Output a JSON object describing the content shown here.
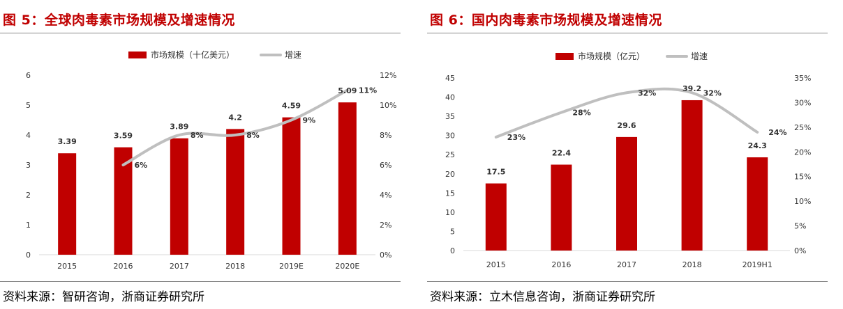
{
  "figures": [
    {
      "title": "图 5：全球肉毒素市场规模及增速情况",
      "source": "资料来源：智研咨询，浙商证券研究所",
      "legend": {
        "bar": "市场规模（十亿美元）",
        "line": "增速"
      },
      "chart_data": {
        "type": "bar",
        "categories": [
          "2015",
          "2016",
          "2017",
          "2018",
          "2019E",
          "2020E"
        ],
        "series": [
          {
            "name": "市场规模（十亿美元）",
            "type": "bar",
            "axis": "left",
            "values": [
              3.39,
              3.59,
              3.89,
              4.2,
              4.59,
              5.09
            ],
            "labels": [
              "3.39",
              "3.59",
              "3.89",
              "4.2",
              "4.59",
              "5.09"
            ]
          },
          {
            "name": "增速",
            "type": "line",
            "axis": "right",
            "values": [
              null,
              0.06,
              0.08,
              0.08,
              0.09,
              0.11
            ],
            "labels": [
              "",
              "6%",
              "8%",
              "8%",
              "9%",
              "11%"
            ]
          }
        ],
        "ylim": [
          0,
          6
        ],
        "yticks": [
          "0",
          "1",
          "2",
          "3",
          "4",
          "5",
          "6"
        ],
        "y2lim": [
          0,
          0.12
        ],
        "y2ticks": [
          "0%",
          "2%",
          "4%",
          "6%",
          "8%",
          "10%",
          "12%"
        ],
        "legend_position": "top",
        "grid": false,
        "colors": {
          "bar": "#c00000",
          "line": "#bfbfbf"
        }
      }
    },
    {
      "title": "图 6：国内肉毒素市场规模及增速情况",
      "source": "资料来源：立木信息咨询，浙商证券研究所",
      "legend": {
        "bar": "市场规模（亿元）",
        "line": "增速"
      },
      "chart_data": {
        "type": "bar",
        "categories": [
          "2015",
          "2016",
          "2017",
          "2018",
          "2019H1"
        ],
        "series": [
          {
            "name": "市场规模（亿元）",
            "type": "bar",
            "axis": "left",
            "values": [
              17.5,
              22.4,
              29.6,
              39.2,
              24.3
            ],
            "labels": [
              "17.5",
              "22.4",
              "29.6",
              "39.2",
              "24.3"
            ]
          },
          {
            "name": "增速",
            "type": "line",
            "axis": "right",
            "values": [
              0.23,
              0.28,
              0.32,
              0.32,
              0.24
            ],
            "labels": [
              "23%",
              "28%",
              "32%",
              "32%",
              "24%"
            ]
          }
        ],
        "ylim": [
          0,
          45
        ],
        "yticks": [
          "0",
          "5",
          "10",
          "15",
          "20",
          "25",
          "30",
          "35",
          "40",
          "45"
        ],
        "y2lim": [
          0,
          0.35
        ],
        "y2ticks": [
          "0%",
          "5%",
          "10%",
          "15%",
          "20%",
          "25%",
          "30%",
          "35%"
        ],
        "legend_position": "top",
        "grid": false,
        "colors": {
          "bar": "#c00000",
          "line": "#bfbfbf"
        }
      }
    }
  ]
}
